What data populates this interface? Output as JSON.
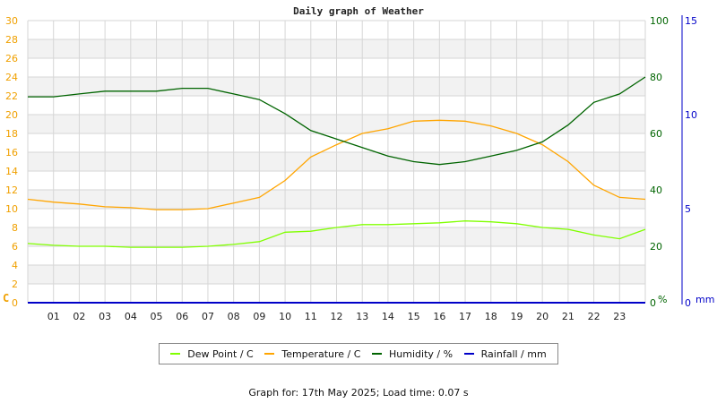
{
  "title": "Daily graph of Weather",
  "footer": "Graph for: 17th May 2025; Load time: 0.07 s",
  "colors": {
    "dew_point": "#80ff00",
    "temperature": "#ffa500",
    "humidity": "#006400",
    "rainfall": "#0000c8",
    "grid": "#d6d6d6",
    "band": "#f2f2f2",
    "axis_left": "#f0a000",
    "axis_humidity": "#006400",
    "axis_rain": "#0000c8"
  },
  "legend": [
    {
      "label": "Dew Point / C",
      "color": "#80ff00"
    },
    {
      "label": "Temperature / C",
      "color": "#ffa500"
    },
    {
      "label": "Humidity / %",
      "color": "#006400"
    },
    {
      "label": "Rainfall / mm",
      "color": "#0000c8"
    }
  ],
  "chart_data": {
    "type": "line",
    "title": "Daily graph of Weather",
    "xlabel": "",
    "x_ticks": [
      "01",
      "02",
      "03",
      "04",
      "05",
      "06",
      "07",
      "08",
      "09",
      "10",
      "11",
      "12",
      "13",
      "14",
      "15",
      "16",
      "17",
      "18",
      "19",
      "20",
      "21",
      "22",
      "23"
    ],
    "x": [
      0,
      1,
      2,
      3,
      4,
      5,
      6,
      7,
      8,
      9,
      10,
      11,
      12,
      13,
      14,
      15,
      16,
      17,
      18,
      19,
      20,
      21,
      22,
      23,
      24
    ],
    "axes": {
      "left": {
        "label": "C",
        "range": [
          0,
          30
        ],
        "ticks": [
          0,
          2,
          4,
          6,
          8,
          10,
          12,
          14,
          16,
          18,
          20,
          22,
          24,
          26,
          28,
          30
        ]
      },
      "right_humidity": {
        "label": "%",
        "range": [
          0,
          100
        ],
        "ticks": [
          0,
          20,
          40,
          60,
          80,
          100
        ]
      },
      "right_rain": {
        "label": "mm",
        "range": [
          0,
          15
        ],
        "ticks": [
          0,
          5,
          10,
          15
        ]
      }
    },
    "series": [
      {
        "name": "Dew Point / C",
        "axis": "left",
        "values": [
          6.3,
          6.1,
          6.0,
          6.0,
          5.9,
          5.9,
          5.9,
          6.0,
          6.2,
          6.5,
          7.5,
          7.6,
          8.0,
          8.3,
          8.3,
          8.4,
          8.5,
          8.7,
          8.6,
          8.4,
          8.0,
          7.8,
          7.2,
          6.8,
          7.8
        ]
      },
      {
        "name": "Temperature / C",
        "axis": "left",
        "values": [
          11.0,
          10.7,
          10.5,
          10.2,
          10.1,
          9.9,
          9.9,
          10.0,
          10.6,
          11.2,
          13.0,
          15.5,
          16.8,
          18.0,
          18.5,
          19.3,
          19.4,
          19.3,
          18.8,
          18.0,
          16.8,
          15.0,
          12.5,
          11.2,
          11.0
        ]
      },
      {
        "name": "Humidity / %",
        "axis": "right_humidity",
        "values": [
          73,
          73,
          74,
          75,
          75,
          75,
          76,
          76,
          74,
          72,
          67,
          61,
          58,
          55,
          52,
          50,
          49,
          50,
          52,
          54,
          57,
          63,
          71,
          74,
          80
        ]
      },
      {
        "name": "Rainfall / mm",
        "axis": "right_rain",
        "values": [
          0,
          0,
          0,
          0,
          0,
          0,
          0,
          0,
          0,
          0,
          0,
          0,
          0,
          0,
          0,
          0,
          0,
          0,
          0,
          0,
          0,
          0,
          0,
          0,
          0
        ]
      }
    ],
    "grid": true,
    "legend_position": "bottom"
  }
}
